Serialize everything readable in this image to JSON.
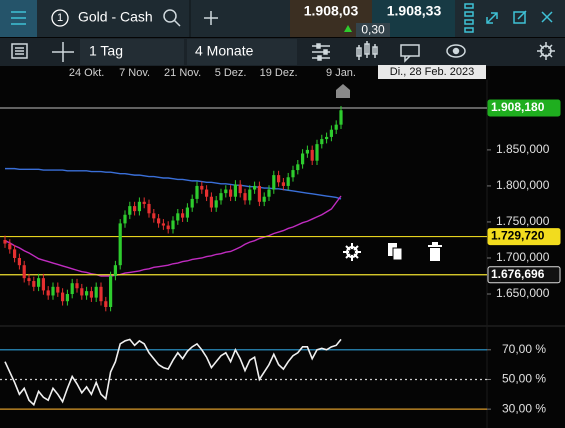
{
  "toolbar": {
    "instrument_number": "1",
    "instrument": "Gold - Cash",
    "bid": "1.908,03",
    "change": "0,30",
    "ask": "1.908,33",
    "interval": "1 Tag",
    "range": "4 Monate"
  },
  "chart_data": [
    {
      "type": "candlestick",
      "categories": [
        null,
        null,
        null,
        null,
        null,
        null,
        null,
        null,
        null,
        null,
        null,
        null,
        null,
        null,
        null,
        null,
        null,
        "24 Okt.",
        null,
        null,
        null,
        null,
        null,
        null,
        null,
        null,
        null,
        "7 Nov.",
        null,
        null,
        null,
        null,
        null,
        null,
        null,
        null,
        null,
        "21 Nov.",
        null,
        null,
        null,
        null,
        null,
        null,
        null,
        null,
        null,
        "5 Dez.",
        null,
        null,
        null,
        null,
        null,
        null,
        null,
        null,
        null,
        "19 Dez.",
        null,
        null,
        null,
        null,
        null,
        null,
        null,
        null,
        null,
        null,
        null,
        null,
        "9 Jan."
      ],
      "open": [
        1725,
        1720,
        1712,
        1700,
        1690,
        1672,
        1668,
        1660,
        1672,
        1655,
        1648,
        1660,
        1652,
        1640,
        1650,
        1665,
        1658,
        1648,
        1654,
        1645,
        1660,
        1640,
        1632,
        1675,
        1690,
        1748,
        1760,
        1772,
        1765,
        1778,
        1775,
        1762,
        1755,
        1748,
        1745,
        1740,
        1752,
        1762,
        1756,
        1770,
        1782,
        1800,
        1795,
        1785,
        1770,
        1780,
        1790,
        1795,
        1785,
        1802,
        1790,
        1780,
        1795,
        1800,
        1778,
        1785,
        1795,
        1815,
        1805,
        1800,
        1812,
        1822,
        1830,
        1845,
        1850,
        1835,
        1858,
        1865,
        1868,
        1878,
        1885
      ],
      "high": [
        1731,
        1726,
        1718,
        1706,
        1696,
        1678,
        1674,
        1678,
        1678,
        1661,
        1666,
        1666,
        1658,
        1656,
        1671,
        1671,
        1664,
        1660,
        1660,
        1666,
        1666,
        1646,
        1681,
        1696,
        1754,
        1766,
        1778,
        1778,
        1784,
        1784,
        1781,
        1768,
        1761,
        1754,
        1751,
        1758,
        1768,
        1768,
        1776,
        1788,
        1806,
        1806,
        1801,
        1791,
        1786,
        1796,
        1801,
        1801,
        1808,
        1808,
        1796,
        1801,
        1806,
        1806,
        1791,
        1801,
        1821,
        1821,
        1811,
        1818,
        1828,
        1836,
        1851,
        1856,
        1856,
        1864,
        1871,
        1874,
        1884,
        1891,
        1911
      ],
      "low": [
        1714,
        1706,
        1694,
        1684,
        1666,
        1662,
        1654,
        1654,
        1649,
        1642,
        1642,
        1646,
        1634,
        1634,
        1644,
        1652,
        1642,
        1642,
        1639,
        1639,
        1634,
        1626,
        1626,
        1669,
        1684,
        1742,
        1754,
        1759,
        1759,
        1769,
        1756,
        1749,
        1742,
        1739,
        1734,
        1734,
        1746,
        1750,
        1750,
        1764,
        1776,
        1789,
        1779,
        1764,
        1764,
        1774,
        1784,
        1779,
        1779,
        1784,
        1774,
        1774,
        1789,
        1772,
        1772,
        1779,
        1789,
        1799,
        1794,
        1794,
        1806,
        1816,
        1824,
        1839,
        1829,
        1829,
        1852,
        1859,
        1862,
        1872,
        1879
      ],
      "close": [
        1720,
        1712,
        1700,
        1690,
        1672,
        1668,
        1660,
        1672,
        1655,
        1648,
        1660,
        1652,
        1640,
        1650,
        1665,
        1658,
        1648,
        1654,
        1645,
        1660,
        1640,
        1632,
        1675,
        1690,
        1748,
        1760,
        1772,
        1765,
        1778,
        1775,
        1762,
        1755,
        1748,
        1745,
        1740,
        1752,
        1762,
        1756,
        1770,
        1782,
        1800,
        1795,
        1785,
        1770,
        1780,
        1790,
        1795,
        1785,
        1802,
        1790,
        1780,
        1795,
        1800,
        1778,
        1785,
        1795,
        1815,
        1805,
        1800,
        1812,
        1822,
        1830,
        1845,
        1850,
        1835,
        1858,
        1865,
        1868,
        1878,
        1885,
        1905
      ],
      "up_color": "#2ecc2e",
      "down_color": "#e53030",
      "overlays": [
        {
          "color": "#3a6fd8",
          "values": [
            1824,
            1824,
            1824,
            1823,
            1823,
            1823,
            1823,
            1823,
            1822,
            1822,
            1822,
            1822,
            1822,
            1821,
            1821,
            1821,
            1821,
            1821,
            1820,
            1820,
            1820,
            1819,
            1819,
            1818,
            1817,
            1817,
            1816,
            1815,
            1815,
            1814,
            1813,
            1813,
            1812,
            1811,
            1811,
            1810,
            1809,
            1809,
            1808,
            1807,
            1807,
            1806,
            1805,
            1805,
            1804,
            1803,
            1803,
            1802,
            1801,
            1801,
            1800,
            1799,
            1799,
            1798,
            1797,
            1797,
            1796,
            1796,
            1795,
            1794,
            1793,
            1792,
            1791,
            1790,
            1789,
            1788,
            1787,
            1786,
            1785,
            1784,
            1782
          ]
        },
        {
          "color": "#c02cc0",
          "values": [
            1724,
            1721,
            1717,
            1714,
            1710,
            1707,
            1703,
            1699,
            1697,
            1695,
            1693,
            1691,
            1689,
            1687,
            1685,
            1683,
            1681,
            1680,
            1678,
            1677,
            1675,
            1675,
            1675,
            1676,
            1677,
            1679,
            1680,
            1681,
            1682,
            1684,
            1685,
            1687,
            1688,
            1689,
            1690,
            1692,
            1693,
            1695,
            1696,
            1698,
            1699,
            1700,
            1702,
            1703,
            1705,
            1706,
            1708,
            1709,
            1712,
            1715,
            1719,
            1722,
            1724,
            1727,
            1729,
            1731,
            1734,
            1736,
            1738,
            1741,
            1743,
            1746,
            1749,
            1751,
            1754,
            1757,
            1760,
            1764,
            1768,
            1777,
            1786
          ]
        }
      ],
      "ylim": [
        1607,
        1947
      ],
      "yticks": [
        {
          "value": 1850,
          "label": "1.850,000"
        },
        {
          "value": 1800,
          "label": "1.800,000"
        },
        {
          "value": 1750,
          "label": "1.750,000"
        },
        {
          "value": 1700,
          "label": "1.700,000"
        },
        {
          "value": 1650,
          "label": "1.650,000"
        }
      ],
      "levels": [
        {
          "value": 1908.18,
          "label": "1.908,180",
          "line_color": "#9a9a9a",
          "box_color": "#1fae1f",
          "text_color": "#ffffff"
        },
        {
          "value": 1729.72,
          "label": "1.729,720",
          "line_color": "#e6d21e",
          "box_color": "#f2dc1e",
          "text_color": "#000000"
        },
        {
          "value": 1676.696,
          "label": "1.676,696",
          "line_color": "#f0e030",
          "box_color": "#111111",
          "text_color": "#ffffff"
        }
      ],
      "crosshair_label": "Di., 28 Feb. 2023"
    },
    {
      "type": "line",
      "values": [
        62,
        55,
        48,
        40,
        44,
        36,
        33,
        42,
        38,
        36,
        44,
        40,
        35,
        44,
        52,
        47,
        41,
        45,
        40,
        48,
        40,
        37,
        55,
        62,
        74,
        76,
        77,
        73,
        76,
        74,
        68,
        64,
        60,
        58,
        57,
        63,
        68,
        64,
        69,
        72,
        74,
        70,
        65,
        58,
        62,
        66,
        68,
        62,
        70,
        64,
        56,
        63,
        65,
        50,
        55,
        60,
        67,
        60,
        57,
        62,
        66,
        68,
        72,
        72,
        64,
        70,
        71,
        70,
        72,
        73,
        77
      ],
      "color": "#f0f0f0",
      "ylim": [
        19.3,
        84.7
      ],
      "yticks": [
        {
          "value": 70,
          "label": "70,00 %"
        },
        {
          "value": 50,
          "label": "50,00 %"
        },
        {
          "value": 30,
          "label": "30,00 %"
        }
      ],
      "reference_lines": [
        {
          "value": 70,
          "color": "#2f9fd6"
        },
        {
          "value": 50,
          "color": "#cccccc"
        },
        {
          "value": 30,
          "color": "#d99a2a"
        }
      ]
    }
  ]
}
